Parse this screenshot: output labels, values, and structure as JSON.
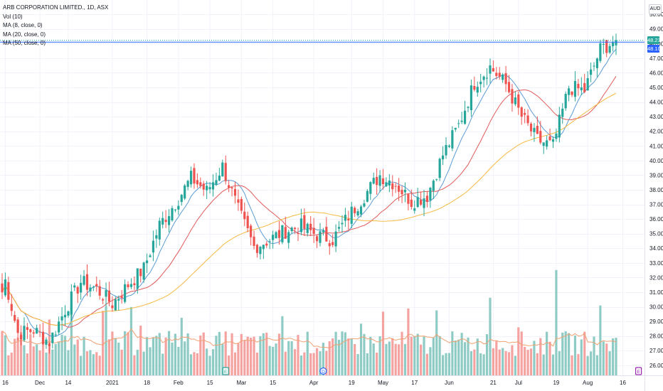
{
  "legend": {
    "title": "ARB CORPORATION LIMITED., 1D, ASX",
    "vol": "Vol (10)",
    "ma8": "MA (8, close, 0)",
    "ma20": "MA (20, close, 0)",
    "ma50": "MA (50, close, 0)"
  },
  "currency": "AUD",
  "price_badges": {
    "last": "48.23",
    "prev": "48.10"
  },
  "colors": {
    "up": "#26a69a",
    "down": "#ef5350",
    "vol_up": "#8fcbc5",
    "vol_down": "#f5a3a1",
    "ma8": "#5b9bd5",
    "ma20": "#e05a5a",
    "ma50": "#f5b942",
    "vol_ma": "#f0a070",
    "badge_last": "#26a69a",
    "badge_prev": "#2962ff"
  },
  "event_markers": [
    {
      "label": "E",
      "date": "2021-02-22",
      "color": "#26a69a"
    },
    {
      "label": "D",
      "date": "2021-04-06",
      "color": "#2962ff"
    },
    {
      "label": "E",
      "date": "2021-08-23",
      "color": "#9c27b0"
    }
  ],
  "chart_data": {
    "type": "candlestick",
    "title": "ARB CORPORATION LIMITED., 1D, ASX",
    "y_axis_ticks": [
      "26.00",
      "27.00",
      "28.00",
      "29.00",
      "30.00",
      "31.00",
      "32.00",
      "33.00",
      "34.00",
      "35.00",
      "36.00",
      "37.00",
      "38.00",
      "39.00",
      "40.00",
      "41.00",
      "42.00",
      "43.00",
      "44.00",
      "45.00",
      "46.00",
      "47.00",
      "48.00",
      "49.00",
      "50.00"
    ],
    "x_axis_ticks": [
      "16",
      "Dec",
      "14",
      "2021",
      "18",
      "Feb",
      "15",
      "Mar",
      "15",
      "Apr",
      "19",
      "May",
      "17",
      "Jun",
      "21",
      "Jul",
      "19",
      "Aug",
      "16"
    ],
    "ylim": [
      25.6,
      50.3
    ],
    "series": [
      {
        "name": "Price",
        "anchors": [
          {
            "d": "2020-11-13",
            "c": 31.0
          },
          {
            "d": "2020-11-16",
            "c": 31.8
          },
          {
            "d": "2020-11-20",
            "c": 28.2
          },
          {
            "d": "2020-11-27",
            "c": 28.4
          },
          {
            "d": "2020-12-04",
            "c": 27.6
          },
          {
            "d": "2020-12-11",
            "c": 29.8
          },
          {
            "d": "2020-12-18",
            "c": 31.7
          },
          {
            "d": "2020-12-25",
            "c": 31.2
          },
          {
            "d": "2021-01-01",
            "c": 30.2
          },
          {
            "d": "2021-01-08",
            "c": 31.5
          },
          {
            "d": "2021-01-15",
            "c": 32.6
          },
          {
            "d": "2021-01-22",
            "c": 35.6
          },
          {
            "d": "2021-02-01",
            "c": 37.4
          },
          {
            "d": "2021-02-05",
            "c": 38.8
          },
          {
            "d": "2021-02-12",
            "c": 37.9
          },
          {
            "d": "2021-02-19",
            "c": 39.6
          },
          {
            "d": "2021-02-26",
            "c": 36.6
          },
          {
            "d": "2021-03-05",
            "c": 34.1
          },
          {
            "d": "2021-03-12",
            "c": 34.6
          },
          {
            "d": "2021-03-19",
            "c": 35.2
          },
          {
            "d": "2021-03-26",
            "c": 35.5
          },
          {
            "d": "2021-04-02",
            "c": 34.9
          },
          {
            "d": "2021-04-09",
            "c": 34.6
          },
          {
            "d": "2021-04-16",
            "c": 36.2
          },
          {
            "d": "2021-04-23",
            "c": 37.6
          },
          {
            "d": "2021-04-30",
            "c": 39.0
          },
          {
            "d": "2021-05-07",
            "c": 38.4
          },
          {
            "d": "2021-05-14",
            "c": 37.2
          },
          {
            "d": "2021-05-21",
            "c": 37.6
          },
          {
            "d": "2021-05-28",
            "c": 40.4
          },
          {
            "d": "2021-06-04",
            "c": 42.4
          },
          {
            "d": "2021-06-11",
            "c": 45.3
          },
          {
            "d": "2021-06-18",
            "c": 46.4
          },
          {
            "d": "2021-06-25",
            "c": 45.2
          },
          {
            "d": "2021-07-02",
            "c": 43.0
          },
          {
            "d": "2021-07-09",
            "c": 41.4
          },
          {
            "d": "2021-07-16",
            "c": 41.0
          },
          {
            "d": "2021-07-23",
            "c": 45.0
          },
          {
            "d": "2021-07-30",
            "c": 44.8
          },
          {
            "d": "2021-08-06",
            "c": 47.6
          },
          {
            "d": "2021-08-13",
            "c": 48.23
          }
        ]
      }
    ]
  }
}
